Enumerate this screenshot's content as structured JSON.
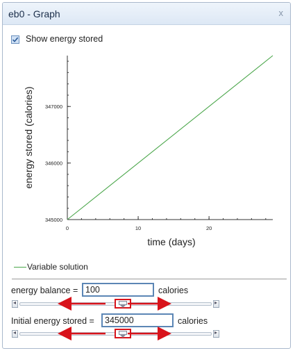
{
  "window": {
    "title": "eb0 - Graph",
    "close_label": "x"
  },
  "show_energy": {
    "label": "Show energy stored",
    "checked": true
  },
  "chart_data": {
    "type": "line",
    "xlabel": "time (days)",
    "ylabel": "energy stored (calories)",
    "xlim": [
      0,
      29
    ],
    "ylim": [
      345000,
      347900
    ],
    "x_ticks": [
      0,
      10,
      20
    ],
    "y_ticks": [
      345000,
      346000,
      347000
    ],
    "series": [
      {
        "name": "Variable solution",
        "color": "#4aa64a",
        "x": [
          0,
          29
        ],
        "y": [
          345000,
          347900
        ]
      }
    ],
    "grid": false,
    "legend": "bottom-left"
  },
  "legend": {
    "label": "Variable solution"
  },
  "params": {
    "energy_balance": {
      "label": "energy balance =",
      "value": "100",
      "unit": "calories"
    },
    "initial_energy": {
      "label": "Initial energy stored =",
      "value": "345000",
      "unit": "calories"
    }
  },
  "sliders": {
    "left_arrow_glyph": "◂",
    "right_arrow_glyph": "▸",
    "energy_balance_position": 0.5,
    "initial_energy_position": 0.5,
    "highlight_color": "#d8131b"
  }
}
